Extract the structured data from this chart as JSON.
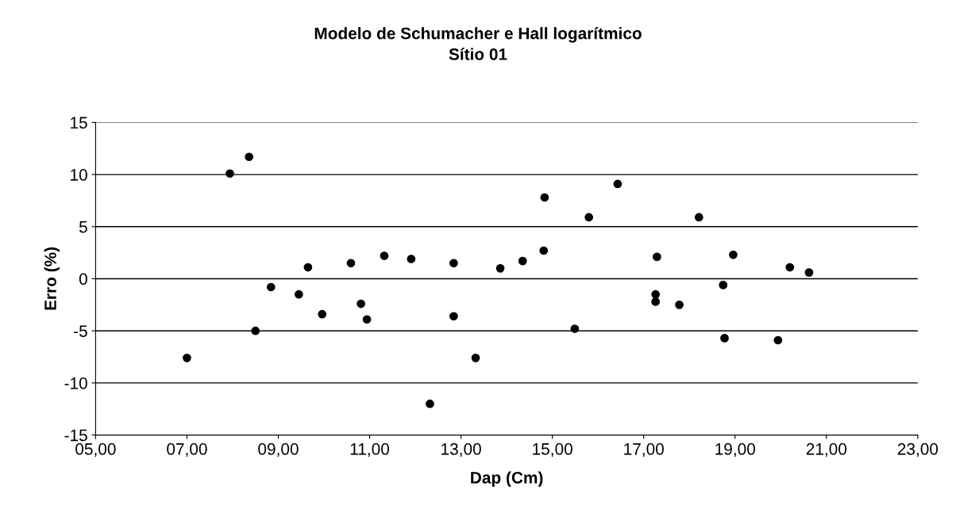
{
  "chart_data": {
    "type": "scatter",
    "title": "Modelo de Schumacher e Hall logarítmico",
    "subtitle": "Sítio 01",
    "xlabel": "Dap (Cm)",
    "ylabel": "Erro (%)",
    "x": [
      7.0,
      7.94,
      8.36,
      8.5,
      8.84,
      9.45,
      9.65,
      9.96,
      10.59,
      10.81,
      10.94,
      11.32,
      11.91,
      12.32,
      12.84,
      12.84,
      13.32,
      13.86,
      14.35,
      14.81,
      14.83,
      15.49,
      15.8,
      16.43,
      17.26,
      17.26,
      17.29,
      17.78,
      18.21,
      18.74,
      18.77,
      18.96,
      19.94,
      20.2,
      20.62
    ],
    "series": [
      {
        "color": "#000000",
        "values": [
          -7.6,
          10.1,
          11.7,
          -5.0,
          -0.8,
          -1.5,
          1.1,
          -3.4,
          1.5,
          -2.4,
          -3.9,
          2.2,
          1.9,
          -12.0,
          1.5,
          -3.6,
          -7.6,
          1.0,
          1.7,
          2.7,
          7.8,
          -4.8,
          5.9,
          9.1,
          -1.5,
          -2.2,
          2.1,
          -2.5,
          5.9,
          -0.6,
          -5.7,
          2.3,
          -5.9,
          1.1,
          0.6
        ]
      }
    ],
    "xlim": [
      5,
      23
    ],
    "xticks": [
      {
        "value": 5,
        "label": "05,00"
      },
      {
        "value": 7,
        "label": "07,00"
      },
      {
        "value": 9,
        "label": "09,00"
      },
      {
        "value": 11,
        "label": "11,00"
      },
      {
        "value": 13,
        "label": "13,00"
      },
      {
        "value": 15,
        "label": "15,00"
      },
      {
        "value": 17,
        "label": "17,00"
      },
      {
        "value": 19,
        "label": "19,00"
      },
      {
        "value": 21,
        "label": "21,00"
      },
      {
        "value": 23,
        "label": "23,00"
      }
    ],
    "ylim": [
      -15,
      15
    ],
    "yticks": [
      -15,
      -10,
      -5,
      0,
      5,
      10,
      15
    ],
    "grid": "y",
    "marker": "circle"
  }
}
